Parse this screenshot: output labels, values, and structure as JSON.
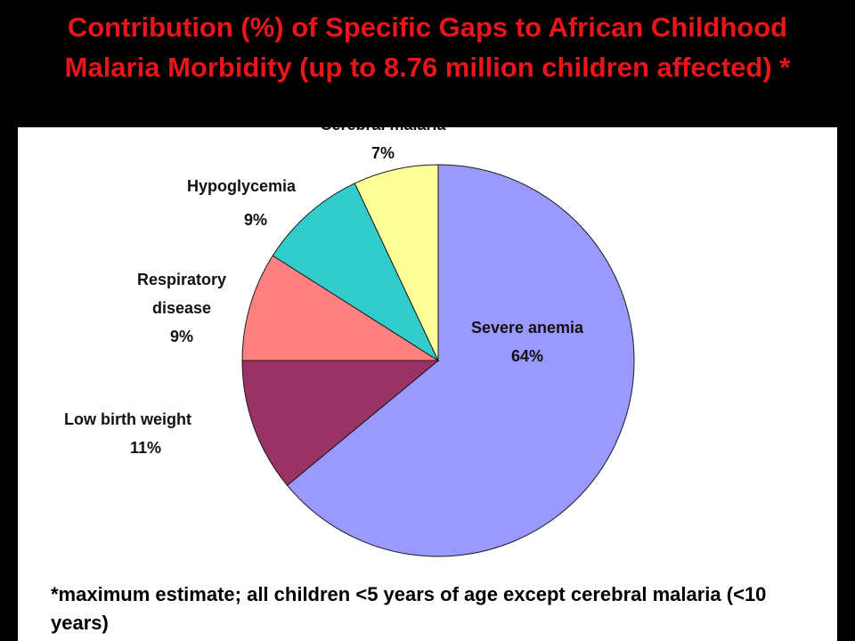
{
  "title": "Contribution (%) of Specific Gaps to African Childhood Malaria Morbidity (up to 8.76 million children affected) *",
  "colors": {
    "title_text": "#e8151b",
    "title_background": "#000000",
    "slice_border": "#1a1a1a"
  },
  "chart_data": {
    "type": "pie",
    "title": "Contribution (%) of Specific Gaps to African Childhood Malaria Morbidity (up to 8.76 million children affected) *",
    "slices": [
      {
        "label": "Severe anemia",
        "value": 64,
        "display": "64%",
        "color": "#9999ff"
      },
      {
        "label": "Low birth weight",
        "value": 11,
        "display": "11%",
        "color": "#993366"
      },
      {
        "label": "Respiratory disease",
        "value": 9,
        "display": "9%",
        "color": "#ff8080"
      },
      {
        "label": "Hypoglycemia",
        "value": 9,
        "display": "9%",
        "color": "#33cccc"
      },
      {
        "label": "Cerebral malaria",
        "value": 7,
        "display": "7%",
        "color": "#ffff99"
      }
    ],
    "legend": "none",
    "start": "top",
    "direction": "clockwise"
  },
  "footnote": "*maximum estimate; all children <5 years of age except cerebral malaria (<10 years)"
}
